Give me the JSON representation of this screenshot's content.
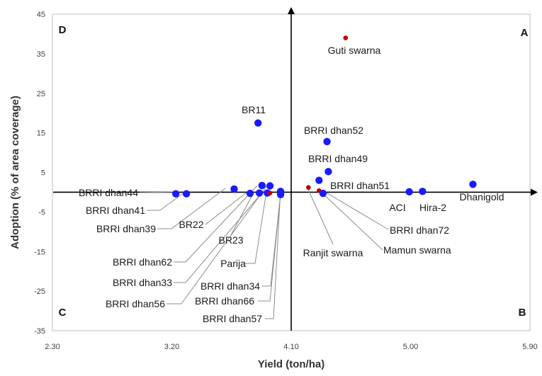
{
  "chart_data": {
    "type": "scatter",
    "title": "",
    "xlabel": "Yield (ton/ha)",
    "ylabel": "Adoption (% of area coverage)",
    "xlim": [
      2.3,
      5.9
    ],
    "ylim": [
      -35,
      45
    ],
    "x_ticks": [
      "2.30",
      "3.20",
      "4.10",
      "5.00",
      "5.90"
    ],
    "x_tick_values": [
      2.3,
      3.2,
      4.1,
      5.0,
      5.9
    ],
    "y_ticks": [
      "45",
      "35",
      "25",
      "15",
      "5",
      "-5",
      "-15",
      "-25",
      "-35"
    ],
    "y_tick_values": [
      45,
      35,
      25,
      15,
      5,
      -5,
      -15,
      -25,
      -35
    ],
    "quadrants": {
      "top_right": "A",
      "bottom_right": "B",
      "bottom_left": "C",
      "top_left": "D"
    },
    "crosshair": {
      "x": 4.1,
      "y": 0
    },
    "series_colors": {
      "modern": "#1a1aff",
      "local": "#c00000"
    },
    "points": [
      {
        "name": "Guti swarna",
        "x": 4.51,
        "y": 39.0,
        "group": "local",
        "label": "Guti swarna"
      },
      {
        "name": "BR11",
        "x": 3.85,
        "y": 17.5,
        "group": "modern",
        "label": "BR11"
      },
      {
        "name": "BRRI dhan52",
        "x": 4.37,
        "y": 12.8,
        "group": "modern",
        "label": "BRRI dhan52"
      },
      {
        "name": "BRRI dhan49",
        "x": 4.38,
        "y": 5.2,
        "group": "modern",
        "label": "BRRI dhan49"
      },
      {
        "name": "BRRI dhan51",
        "x": 4.31,
        "y": 3.0,
        "group": "modern",
        "label": "BRRI dhan51"
      },
      {
        "name": "Ranjit swarna",
        "x": 4.23,
        "y": 1.2,
        "group": "local",
        "label": "Ranjit swarna"
      },
      {
        "name": "Mamun swarna",
        "x": 4.31,
        "y": 0.4,
        "group": "local",
        "label": "Mamun swarna"
      },
      {
        "name": "BRRI dhan72",
        "x": 4.34,
        "y": -0.3,
        "group": "modern",
        "label": "BRRI dhan72"
      },
      {
        "name": "ACI",
        "x": 4.99,
        "y": 0.1,
        "group": "modern",
        "label": "ACI"
      },
      {
        "name": "Hira-2",
        "x": 5.09,
        "y": 0.2,
        "group": "modern",
        "label": "Hira-2"
      },
      {
        "name": "Dhanigold",
        "x": 5.47,
        "y": 2.0,
        "group": "modern",
        "label": "Dhanigold"
      },
      {
        "name": "BRRI dhan44",
        "x": 3.23,
        "y": -0.4,
        "group": "modern",
        "label": "BRRI dhan44"
      },
      {
        "name": "BRRI dhan41",
        "x": 3.31,
        "y": -0.4,
        "group": "modern",
        "label": "BRRI dhan41"
      },
      {
        "name": "BRRI dhan39",
        "x": 3.67,
        "y": 0.8,
        "group": "modern",
        "label": "BRRI dhan39"
      },
      {
        "name": "BR22",
        "x": 3.79,
        "y": -0.3,
        "group": "modern",
        "label": "BR22"
      },
      {
        "name": "BR23",
        "x": 3.86,
        "y": -0.2,
        "group": "modern",
        "label": "BR23"
      },
      {
        "name": "BRRI dhan62",
        "x": 3.88,
        "y": 1.7,
        "group": "modern",
        "label": "BRRI dhan62"
      },
      {
        "name": "BRRI dhan33",
        "x": 3.92,
        "y": -0.2,
        "group": "modern",
        "label": "BRRI dhan33"
      },
      {
        "name": "BRRI dhan56",
        "x": 3.94,
        "y": 1.6,
        "group": "modern",
        "label": "BRRI dhan56"
      },
      {
        "name": "Parija",
        "x": 3.94,
        "y": -0.2,
        "group": "local",
        "label": "Parija"
      },
      {
        "name": "BRRI dhan34",
        "x": 4.02,
        "y": -0.6,
        "group": "modern",
        "label": "BRRI dhan34"
      },
      {
        "name": "BRRI dhan66",
        "x": 4.02,
        "y": -0.2,
        "group": "modern",
        "label": "BRRI dhan66"
      },
      {
        "name": "BRRI dhan57",
        "x": 4.02,
        "y": 0.2,
        "group": "modern",
        "label": "BRRI dhan57"
      }
    ]
  }
}
